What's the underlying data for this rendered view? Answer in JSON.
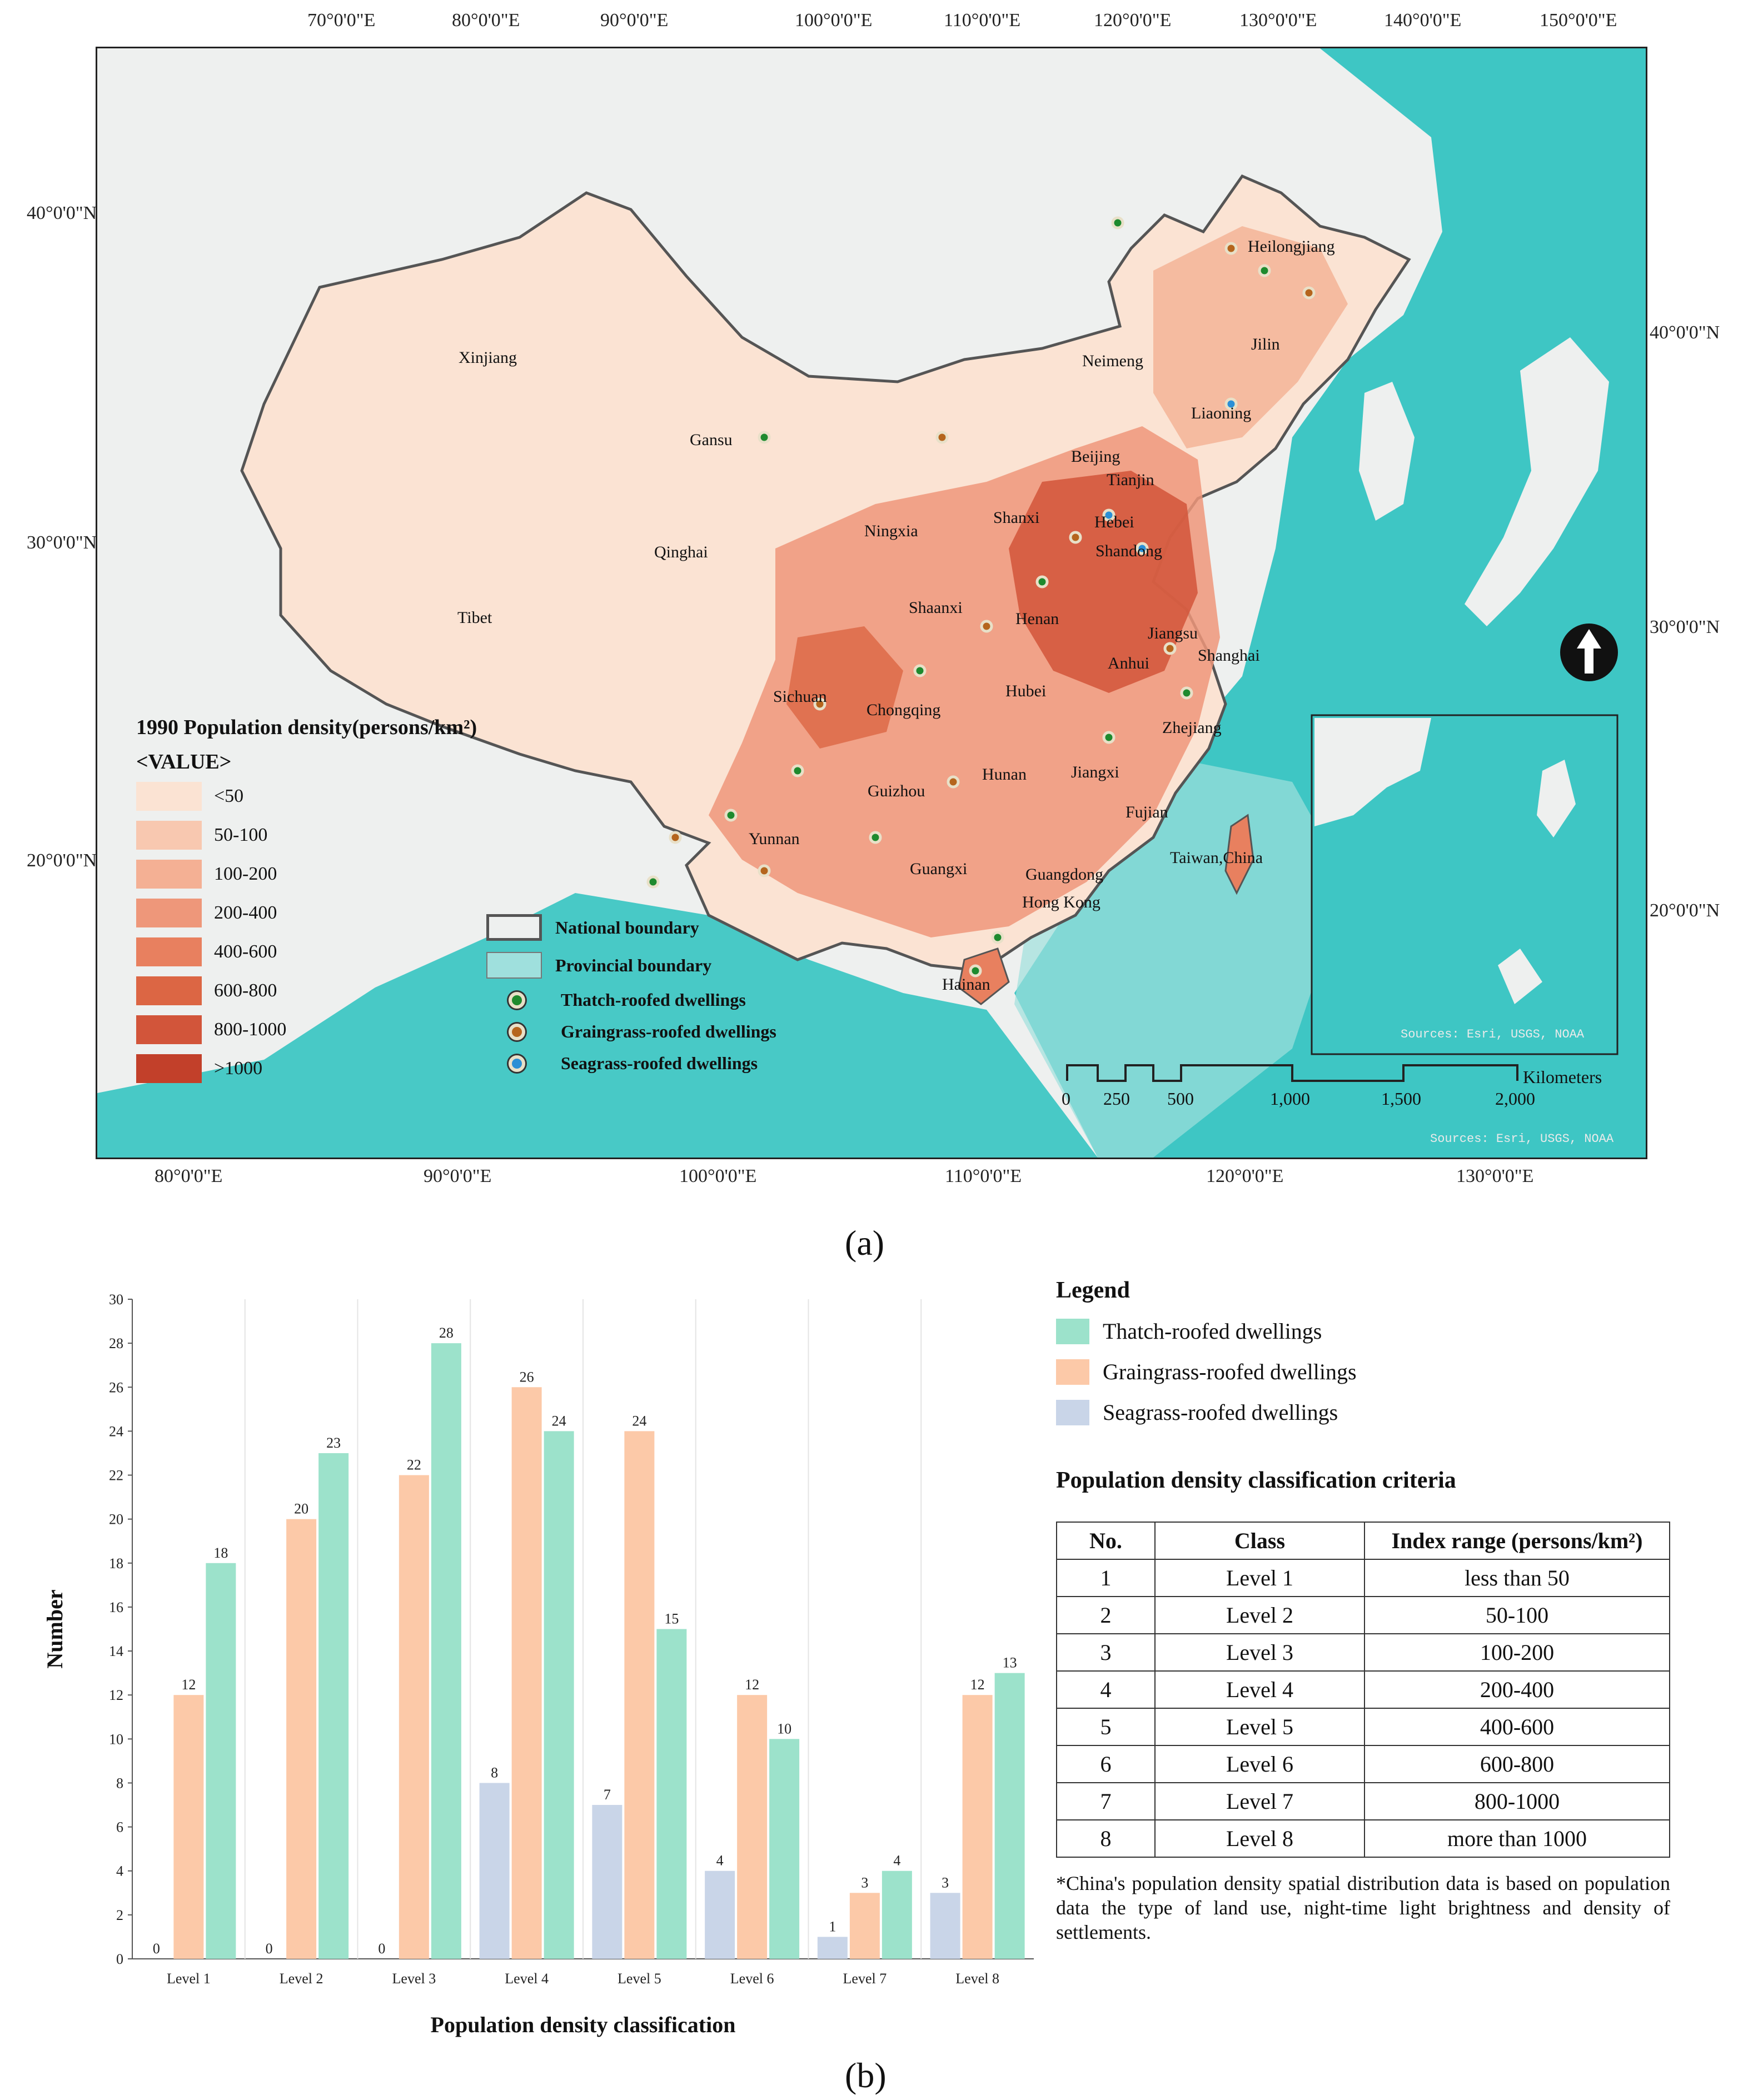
{
  "map": {
    "top_lon_ticks": [
      "70°0'0\"E",
      "80°0'0\"E",
      "90°0'0\"E",
      "100°0'0\"E",
      "110°0'0\"E",
      "120°0'0\"E",
      "130°0'0\"E",
      "140°0'0\"E",
      "150°0'0\"E"
    ],
    "bottom_lon_ticks": [
      "80°0'0\"E",
      "90°0'0\"E",
      "100°0'0\"E",
      "110°0'0\"E",
      "120°0'0\"E",
      "130°0'0\"E"
    ],
    "left_lat_ticks": [
      "40°0'0\"N",
      "30°0'0\"N",
      "20°0'0\"N"
    ],
    "right_lat_ticks": [
      "40°0'0\"N",
      "30°0'0\"N",
      "20°0'0\"N"
    ],
    "provinces": [
      "Heilongjiang",
      "Jilin",
      "Neimeng",
      "Liaoning",
      "Xinjiang",
      "Gansu",
      "Beijing",
      "Tianjin",
      "Hebei",
      "Shanxi",
      "Ningxia",
      "Qinghai",
      "Shandong",
      "Shaanxi",
      "Henan",
      "Jiangsu",
      "Anhui",
      "Shanghai",
      "Tibet",
      "Sichuan",
      "Chongqing",
      "Hubei",
      "Zhejiang",
      "Guizhou",
      "Hunan",
      "Jiangxi",
      "Fujian",
      "Yunnan",
      "Guangxi",
      "Guangdong",
      "Taiwan,China",
      "Hong Kong",
      "Hainan"
    ],
    "density_legend": {
      "title": "1990 Population density(persons/km²)",
      "value_header": "<VALUE>",
      "classes": [
        {
          "label": "<50",
          "color": "#fbe3d3"
        },
        {
          "label": "50-100",
          "color": "#f8c8b0"
        },
        {
          "label": "100-200",
          "color": "#f4b094"
        },
        {
          "label": "200-400",
          "color": "#ee977a"
        },
        {
          "label": "400-600",
          "color": "#e8805f"
        },
        {
          "label": "600-800",
          "color": "#dc6644"
        },
        {
          "label": "800-1000",
          "color": "#d2553a"
        },
        {
          "label": ">1000",
          "color": "#c2402a"
        }
      ]
    },
    "symbol_legend": {
      "national_boundary": "National boundary",
      "provincial_boundary": "Provincial boundary",
      "thatch": "Thatch-roofed dwellings",
      "graingrass": "Graingrass-roofed dwellings",
      "seagrass": "Seagrass-roofed dwellings"
    },
    "dot_colors": {
      "thatch": "#1e8a2e",
      "graingrass": "#b5651d",
      "seagrass": "#2b8fd6"
    },
    "scale_bar": {
      "unit": "Kilometers",
      "ticks": [
        "0",
        "250",
        "500",
        "1,000",
        "1,500",
        "2,000"
      ]
    },
    "inset_source": "Sources: Esri, USGS, NOAA",
    "map_source": "Sources: Esri, USGS, NOAA",
    "colors": {
      "sea": "#3ec6c4",
      "land": "#eef0ef",
      "low_density": "#fbe3d3"
    }
  },
  "caption_a": "(a)",
  "caption_b": "(b)",
  "chart_data": {
    "type": "bar",
    "title": "",
    "xlabel": "Population density classification",
    "ylabel": "Number",
    "ylim": [
      0,
      30
    ],
    "yticks": [
      0,
      2,
      4,
      6,
      8,
      10,
      12,
      14,
      16,
      18,
      20,
      22,
      24,
      26,
      28,
      30
    ],
    "categories": [
      "Level 1",
      "Level 2",
      "Level 3",
      "Level 4",
      "Level 5",
      "Level 6",
      "Level 7",
      "Level 8"
    ],
    "series": [
      {
        "name": "Seagrass-roofed dwellings",
        "color": "#c9d5e8",
        "values": [
          0,
          0,
          0,
          8,
          7,
          4,
          1,
          3
        ]
      },
      {
        "name": "Graingrass-roofed dwellings",
        "color": "#fcc9a8",
        "values": [
          12,
          20,
          22,
          26,
          24,
          12,
          3,
          12
        ]
      },
      {
        "name": "Thatch-roofed dwellings",
        "color": "#9ce2cb",
        "values": [
          18,
          23,
          28,
          24,
          15,
          10,
          4,
          13
        ]
      }
    ]
  },
  "chart_legend": {
    "title": "Legend",
    "items": [
      {
        "label": "Thatch-roofed dwellings",
        "color": "#9ce2cb"
      },
      {
        "label": "Graingrass-roofed dwellings",
        "color": "#fcc9a8"
      },
      {
        "label": "Seagrass-roofed dwellings",
        "color": "#c9d5e8"
      }
    ]
  },
  "criteria": {
    "title": "Population density classification criteria",
    "headers": [
      "No.",
      "Class",
      "Index range (persons/km²)"
    ],
    "rows": [
      [
        "1",
        "Level 1",
        "less than 50"
      ],
      [
        "2",
        "Level 2",
        "50-100"
      ],
      [
        "3",
        "Level 3",
        "100-200"
      ],
      [
        "4",
        "Level 4",
        "200-400"
      ],
      [
        "5",
        "Level 5",
        "400-600"
      ],
      [
        "6",
        "Level 6",
        "600-800"
      ],
      [
        "7",
        "Level 7",
        "800-1000"
      ],
      [
        "8",
        "Level 8",
        "more than 1000"
      ]
    ],
    "note": "*China's population density spatial distribution data is based on population data  the type of land use, night-time light brightness and density of settlements."
  }
}
